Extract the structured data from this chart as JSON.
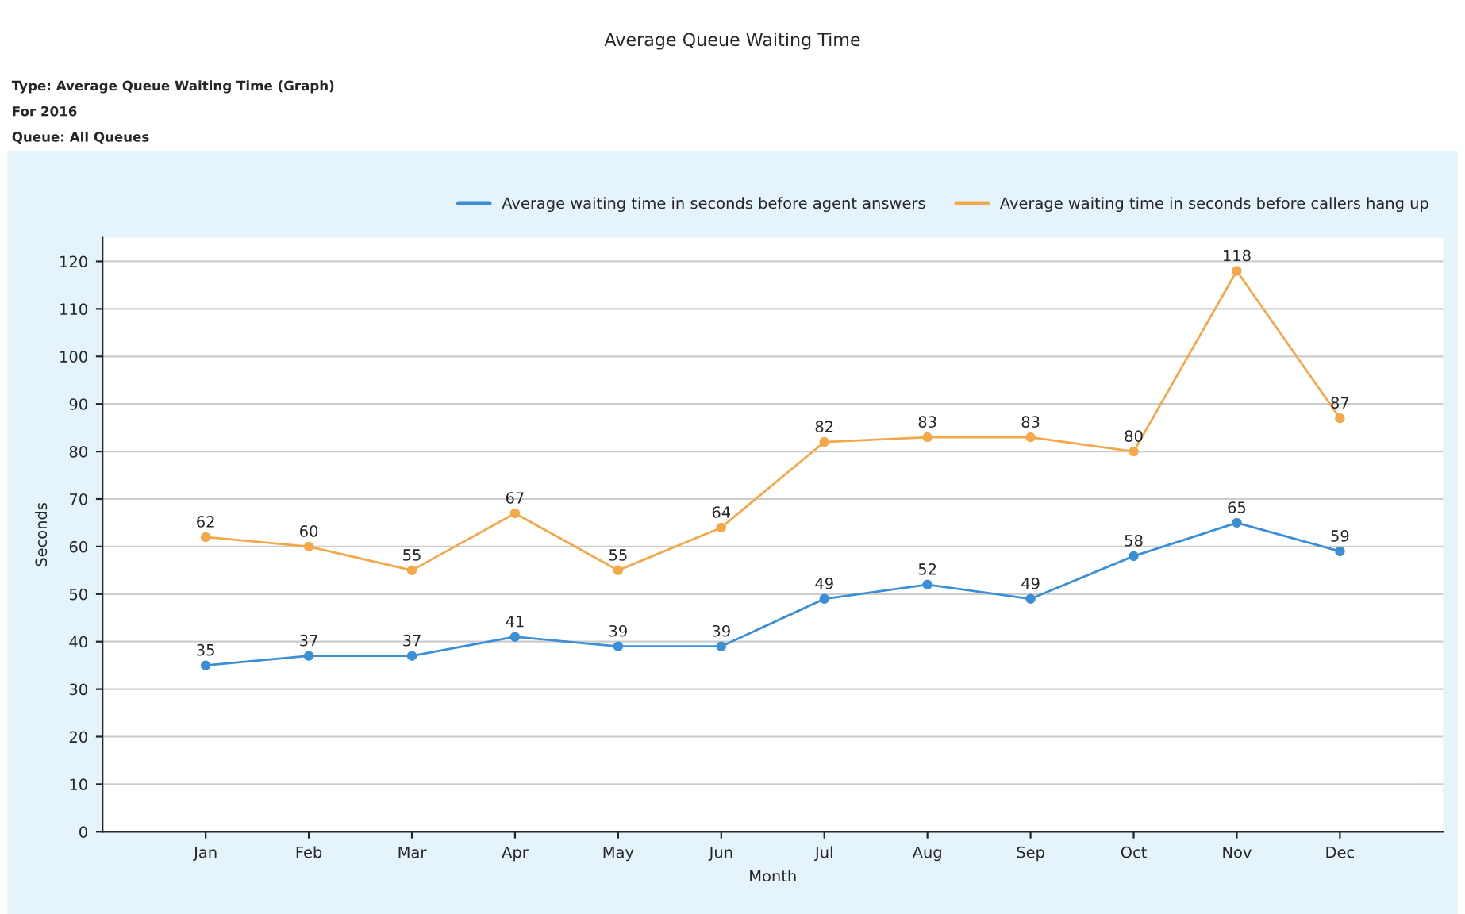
{
  "chart_data": {
    "type": "line",
    "title": "Average Queue Waiting Time",
    "annotations": [
      "Type: Average Queue Waiting Time (Graph)",
      "For 2016",
      "Queue: All Queues"
    ],
    "xlabel": "Month",
    "ylabel": "Seconds",
    "categories": [
      "Jan",
      "Feb",
      "Mar",
      "Apr",
      "May",
      "Jun",
      "Jul",
      "Aug",
      "Sep",
      "Oct",
      "Nov",
      "Dec"
    ],
    "series": [
      {
        "name": "Average waiting time in seconds before agent answers",
        "color": "#3a8fd6",
        "values": [
          35,
          37,
          37,
          41,
          39,
          39,
          49,
          52,
          49,
          58,
          65,
          59
        ]
      },
      {
        "name": "Average waiting time in seconds before callers hang up",
        "color": "#f5a84a",
        "values": [
          62,
          60,
          55,
          67,
          55,
          64,
          82,
          83,
          83,
          80,
          118,
          87
        ]
      }
    ],
    "ylim": [
      0,
      125
    ],
    "yticks": [
      0,
      10,
      20,
      30,
      40,
      50,
      60,
      70,
      80,
      90,
      100,
      110,
      120
    ],
    "grid": "y",
    "legend": "top right",
    "marker": "circle",
    "line_style": "solid",
    "data_labels": true
  }
}
